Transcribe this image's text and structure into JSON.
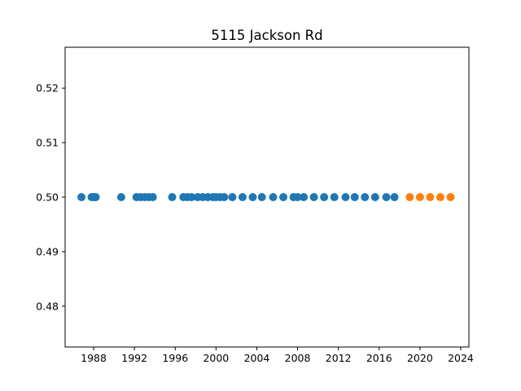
{
  "chart_data": {
    "type": "scatter",
    "title": "5115 Jackson Rd",
    "xlabel": "",
    "ylabel": "",
    "xlim": [
      1985.2,
      2024.8
    ],
    "ylim": [
      0.4725,
      0.5275
    ],
    "grid": false,
    "x_ticks": [
      1988,
      1992,
      1996,
      2000,
      2004,
      2008,
      2012,
      2016,
      2020,
      2024
    ],
    "y_ticks": [
      0.48,
      0.49,
      0.5,
      0.51,
      0.52
    ],
    "x_tick_labels": [
      "1988",
      "1992",
      "1996",
      "2000",
      "2004",
      "2008",
      "2012",
      "2016",
      "2020",
      "2024"
    ],
    "y_tick_labels": [
      "0.48",
      "0.49",
      "0.50",
      "0.51",
      "0.52"
    ],
    "series": [
      {
        "color": "#1f77b4",
        "x": [
          1986.8,
          1987.8,
          1988.0,
          1988.2,
          1990.7,
          1992.2,
          1992.6,
          1993.0,
          1993.4,
          1993.8,
          1995.7,
          1996.8,
          1997.2,
          1997.6,
          1998.2,
          1998.7,
          1999.2,
          1999.7,
          2000.0,
          2000.4,
          2000.8,
          2001.6,
          2002.6,
          2003.6,
          2004.5,
          2005.6,
          2006.6,
          2007.6,
          2008.0,
          2008.6,
          2009.6,
          2010.6,
          2011.6,
          2012.7,
          2013.6,
          2014.6,
          2015.6,
          2016.7,
          2017.5
        ],
        "y": [
          0.5,
          0.5,
          0.5,
          0.5,
          0.5,
          0.5,
          0.5,
          0.5,
          0.5,
          0.5,
          0.5,
          0.5,
          0.5,
          0.5,
          0.5,
          0.5,
          0.5,
          0.5,
          0.5,
          0.5,
          0.5,
          0.5,
          0.5,
          0.5,
          0.5,
          0.5,
          0.5,
          0.5,
          0.5,
          0.5,
          0.5,
          0.5,
          0.5,
          0.5,
          0.5,
          0.5,
          0.5,
          0.5,
          0.5
        ]
      },
      {
        "color": "#ff7f0e",
        "x": [
          2019.0,
          2020.0,
          2021.0,
          2022.0,
          2023.0
        ],
        "y": [
          0.5,
          0.5,
          0.5,
          0.5,
          0.5
        ]
      }
    ]
  }
}
